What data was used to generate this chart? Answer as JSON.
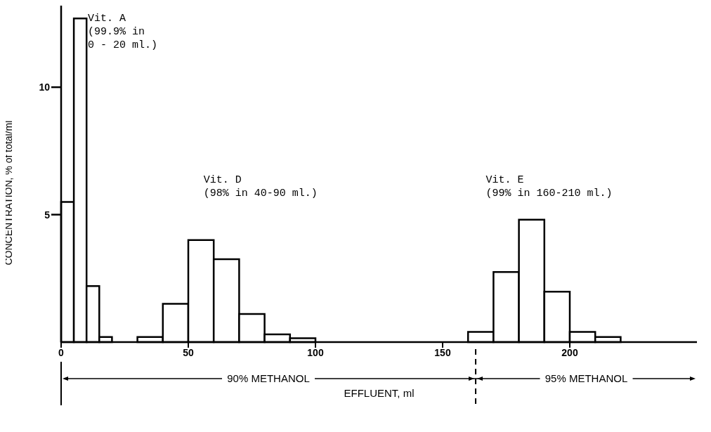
{
  "chart_data": {
    "type": "histogram",
    "xlabel": "EFFLUENT, ml",
    "ylabel": "CONCENTRATION, % of total/ml",
    "bins": [
      0,
      5,
      10,
      15,
      20,
      30,
      40,
      50,
      60,
      70,
      80,
      90,
      100,
      160,
      170,
      180,
      190,
      200,
      210,
      220
    ],
    "values": [
      5.5,
      12.7,
      2.2,
      0.2,
      0,
      0.2,
      1.5,
      4.0,
      3.25,
      1.1,
      0.3,
      0.15,
      0,
      0.4,
      2.75,
      4.8,
      1.98,
      0.4,
      0.2
    ],
    "color": "#ffffff",
    "xlim": [
      0,
      250
    ],
    "xticks": [
      0,
      50,
      100,
      150,
      200
    ],
    "ylim": [
      0,
      13.2
    ],
    "yticks": [
      5,
      10
    ],
    "grid": false,
    "annotations": [
      "Vit. A\n(99.9% in\n0 - 20 ml.)",
      "Vit. D\n(98% in 40-90 ml.)",
      "Vit. E\n(99% in 160-210 ml.)",
      "90% METHANOL",
      "95% METHANOL"
    ]
  }
}
